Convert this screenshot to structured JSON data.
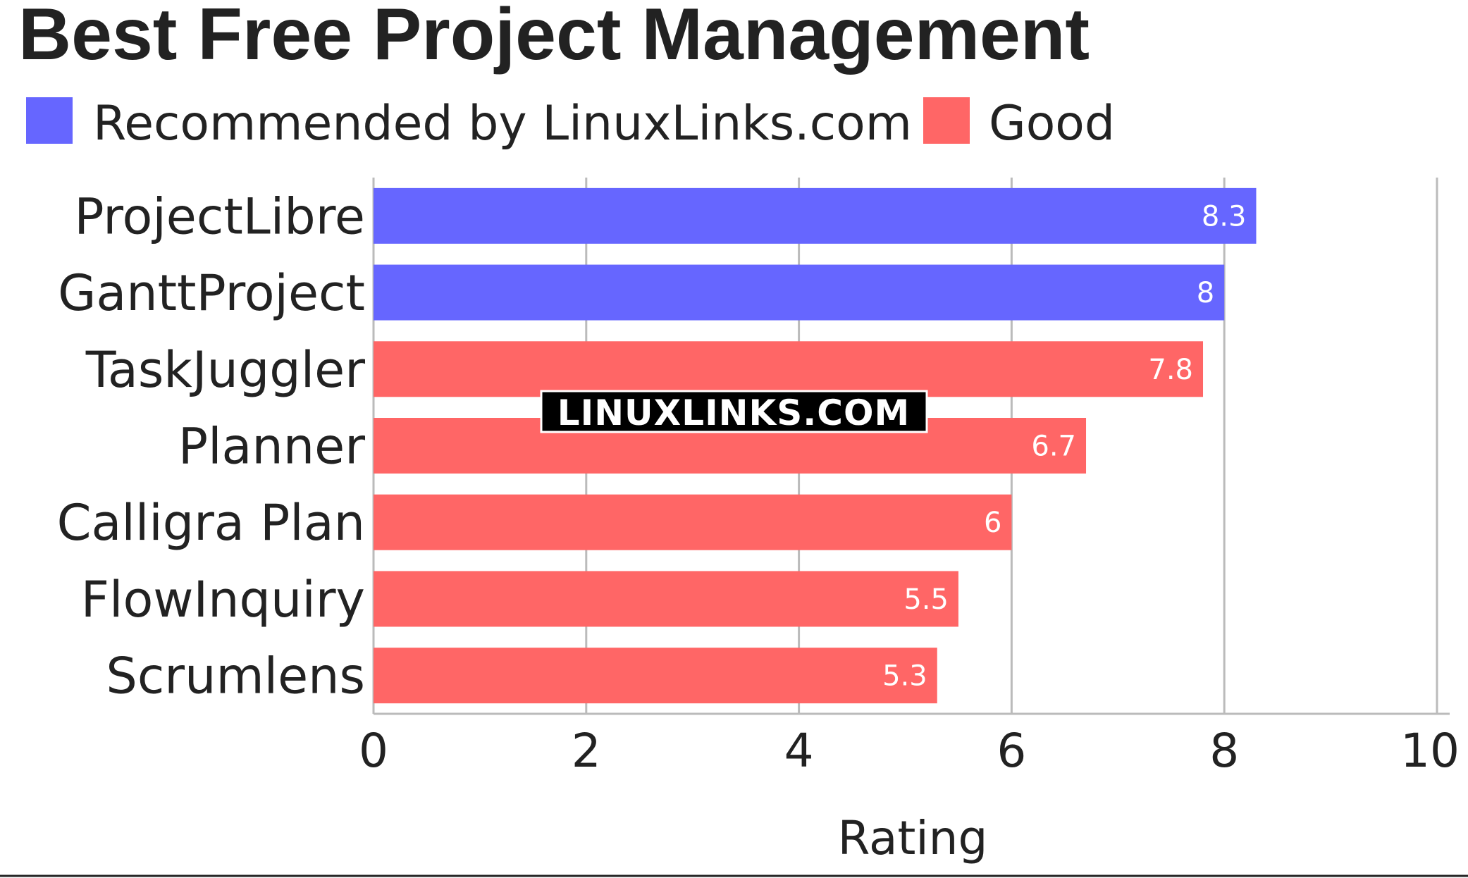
{
  "chart_data": {
    "type": "bar",
    "orientation": "horizontal",
    "title": "Best Free Project Management",
    "xlabel": "Rating",
    "ylabel": "",
    "xlim": [
      0,
      10
    ],
    "ticks": [
      0,
      2,
      4,
      6,
      8,
      10
    ],
    "grid": true,
    "legend_position": "top-left",
    "legend": [
      {
        "name": "Recommended by LinuxLinks.com",
        "color": "#6666ff"
      },
      {
        "name": "Good",
        "color": "#ff6666"
      }
    ],
    "categories": [
      "ProjectLibre",
      "GanttProject",
      "TaskJuggler",
      "Planner",
      "Calligra Plan",
      "FlowInquiry",
      "Scrumlens"
    ],
    "values": [
      8.3,
      8,
      7.8,
      6.7,
      6,
      5.5,
      5.3
    ],
    "groups": [
      "Recommended by LinuxLinks.com",
      "Recommended by LinuxLinks.com",
      "Good",
      "Good",
      "Good",
      "Good",
      "Good"
    ]
  },
  "watermark": "LINUXLINKS.COM",
  "colors": {
    "recommended": "#6666ff",
    "good": "#ff6666",
    "grid": "#bbbbbb",
    "text": "#222222"
  }
}
